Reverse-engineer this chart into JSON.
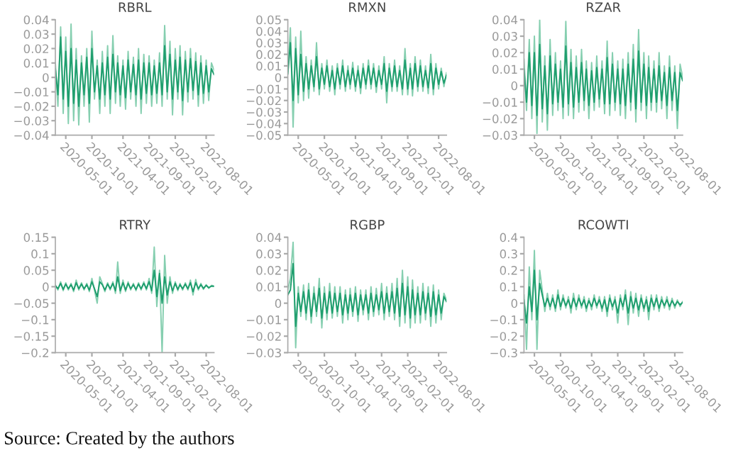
{
  "chart_data": [
    {
      "type": "line",
      "title": "RBRL",
      "x": [
        "2020-03-01",
        "2020-03-16",
        "2020-04-01",
        "2020-04-16",
        "2020-05-01",
        "2020-05-16",
        "2020-06-01",
        "2020-06-16",
        "2020-07-01",
        "2020-07-16",
        "2020-08-01",
        "2020-08-16",
        "2020-09-01",
        "2020-09-16",
        "2020-10-01",
        "2020-10-16",
        "2020-11-01",
        "2020-11-16",
        "2020-12-01",
        "2020-12-16",
        "2021-01-01",
        "2021-01-16",
        "2021-02-01",
        "2021-02-16",
        "2021-03-01",
        "2021-03-16",
        "2021-04-01",
        "2021-04-16",
        "2021-05-01",
        "2021-05-16",
        "2021-06-01",
        "2021-06-16",
        "2021-07-01",
        "2021-07-16",
        "2021-08-01",
        "2021-08-16",
        "2021-09-01",
        "2021-09-16",
        "2021-10-01",
        "2021-10-16",
        "2021-11-01",
        "2021-11-16",
        "2021-12-01",
        "2021-12-16",
        "2022-01-01",
        "2022-01-16",
        "2022-02-01",
        "2022-02-16",
        "2022-03-01",
        "2022-03-16",
        "2022-04-01",
        "2022-04-16",
        "2022-05-01",
        "2022-05-16",
        "2022-06-01",
        "2022-06-16",
        "2022-07-01",
        "2022-07-16",
        "2022-08-01",
        "2022-08-16",
        "2022-09-01",
        "2022-09-16"
      ],
      "xlim": [
        "2020-03-01",
        "2022-09-16"
      ],
      "xticks": [
        "2020-05-01",
        "2020-10-01",
        "2021-04-01",
        "2021-09-01",
        "2022-02-01",
        "2022-08-01"
      ],
      "ylim": [
        -0.04,
        0.04
      ],
      "yticks": [
        -0.04,
        -0.03,
        -0.02,
        -0.01,
        0,
        0.01,
        0.02,
        0.03,
        0.04
      ],
      "grid": false,
      "legend": false,
      "series": [
        {
          "color": "#86cfb0",
          "values": [
            0.01,
            -0.02,
            0.035,
            -0.025,
            0.028,
            -0.032,
            0.037,
            -0.03,
            0.02,
            -0.033,
            0.015,
            -0.02,
            0.02,
            -0.031,
            0.032,
            -0.015,
            0.012,
            -0.025,
            0.018,
            -0.02,
            0.022,
            -0.025,
            0.029,
            -0.018,
            0.015,
            -0.02,
            0.012,
            -0.022,
            0.018,
            -0.015,
            0.014,
            -0.02,
            0.02,
            -0.025,
            0.016,
            -0.018,
            0.015,
            -0.02,
            0.012,
            -0.018,
            0.017,
            -0.02,
            0.036,
            -0.015,
            0.025,
            -0.026,
            0.02,
            -0.015,
            0.022,
            -0.026,
            0.018,
            -0.017,
            0.02,
            -0.015,
            0.017,
            -0.02,
            0.015,
            -0.018,
            0.012,
            -0.016,
            0.01,
            0.005
          ]
        },
        {
          "color": "#1f9e6e",
          "values": [
            0.006,
            -0.012,
            0.028,
            -0.015,
            0.018,
            -0.02,
            0.02,
            -0.018,
            0.012,
            -0.02,
            0.01,
            -0.012,
            0.014,
            -0.018,
            0.02,
            -0.01,
            0.008,
            -0.015,
            0.01,
            -0.012,
            0.014,
            -0.015,
            0.016,
            -0.01,
            0.01,
            -0.012,
            0.008,
            -0.014,
            0.012,
            -0.01,
            0.009,
            -0.012,
            0.012,
            -0.015,
            0.01,
            -0.011,
            0.01,
            -0.012,
            0.008,
            -0.011,
            0.01,
            -0.012,
            0.022,
            -0.01,
            0.016,
            -0.015,
            0.012,
            -0.01,
            0.014,
            -0.016,
            0.012,
            -0.01,
            0.013,
            -0.009,
            0.011,
            -0.012,
            0.01,
            -0.011,
            0.008,
            -0.01,
            0.006,
            0.002
          ]
        }
      ],
      "annotations": [
        "Source: Created by the authors"
      ]
    },
    {
      "type": "line",
      "title": "RMXN",
      "x": [
        "2020-03-01",
        "2020-03-16",
        "2020-04-01",
        "2020-04-16",
        "2020-05-01",
        "2020-05-16",
        "2020-06-01",
        "2020-06-16",
        "2020-07-01",
        "2020-07-16",
        "2020-08-01",
        "2020-08-16",
        "2020-09-01",
        "2020-09-16",
        "2020-10-01",
        "2020-10-16",
        "2020-11-01",
        "2020-11-16",
        "2020-12-01",
        "2020-12-16",
        "2021-01-01",
        "2021-01-16",
        "2021-02-01",
        "2021-02-16",
        "2021-03-01",
        "2021-03-16",
        "2021-04-01",
        "2021-04-16",
        "2021-05-01",
        "2021-05-16",
        "2021-06-01",
        "2021-06-16",
        "2021-07-01",
        "2021-07-16",
        "2021-08-01",
        "2021-08-16",
        "2021-09-01",
        "2021-09-16",
        "2021-10-01",
        "2021-10-16",
        "2021-11-01",
        "2021-11-16",
        "2021-12-01",
        "2021-12-16",
        "2022-01-01",
        "2022-01-16",
        "2022-02-01",
        "2022-02-16",
        "2022-03-01",
        "2022-03-16",
        "2022-04-01",
        "2022-04-16",
        "2022-05-01",
        "2022-05-16",
        "2022-06-01",
        "2022-06-16",
        "2022-07-01",
        "2022-07-16",
        "2022-08-01",
        "2022-08-16",
        "2022-09-01",
        "2022-09-16"
      ],
      "xlim": [
        "2020-03-01",
        "2022-09-16"
      ],
      "xticks": [
        "2020-05-01",
        "2020-10-01",
        "2021-04-01",
        "2021-09-01",
        "2022-02-01",
        "2022-08-01"
      ],
      "ylim": [
        -0.05,
        0.05
      ],
      "yticks": [
        -0.05,
        -0.04,
        -0.03,
        -0.02,
        -0.01,
        0,
        0.01,
        0.02,
        0.03,
        0.04,
        0.05
      ],
      "grid": false,
      "legend": false,
      "series": [
        {
          "color": "#86cfb0",
          "values": [
            0.005,
            0.043,
            -0.043,
            0.035,
            -0.022,
            0.04,
            -0.02,
            0.018,
            -0.018,
            0.015,
            -0.012,
            0.03,
            -0.015,
            0.012,
            -0.01,
            0.015,
            -0.012,
            0.01,
            -0.015,
            0.012,
            -0.01,
            0.015,
            -0.012,
            0.01,
            -0.01,
            0.013,
            -0.012,
            0.01,
            -0.014,
            0.012,
            -0.01,
            0.015,
            -0.01,
            0.012,
            -0.013,
            0.01,
            -0.01,
            0.018,
            -0.022,
            0.012,
            -0.012,
            0.015,
            -0.012,
            0.01,
            -0.015,
            0.025,
            -0.015,
            0.012,
            -0.016,
            0.018,
            -0.012,
            0.015,
            -0.012,
            0.01,
            -0.014,
            0.02,
            -0.015,
            0.012,
            -0.01,
            0.008,
            -0.008,
            0.004
          ]
        },
        {
          "color": "#1f9e6e",
          "values": [
            0.003,
            0.03,
            -0.02,
            0.025,
            -0.015,
            0.02,
            -0.012,
            0.012,
            -0.01,
            0.01,
            -0.008,
            0.018,
            -0.01,
            0.008,
            -0.006,
            0.01,
            -0.008,
            0.006,
            -0.01,
            0.008,
            -0.006,
            0.01,
            -0.008,
            0.006,
            -0.006,
            0.008,
            -0.008,
            0.006,
            -0.009,
            0.008,
            -0.006,
            0.01,
            -0.006,
            0.008,
            -0.008,
            0.006,
            -0.006,
            0.012,
            -0.012,
            0.008,
            -0.008,
            0.01,
            -0.008,
            0.006,
            -0.01,
            0.015,
            -0.01,
            0.008,
            -0.01,
            0.012,
            -0.008,
            0.01,
            -0.008,
            0.006,
            -0.009,
            0.012,
            -0.01,
            0.008,
            -0.006,
            0.005,
            -0.005,
            0.002
          ]
        }
      ]
    },
    {
      "type": "line",
      "title": "RZAR",
      "x": [
        "2020-03-01",
        "2020-03-16",
        "2020-04-01",
        "2020-04-16",
        "2020-05-01",
        "2020-05-16",
        "2020-06-01",
        "2020-06-16",
        "2020-07-01",
        "2020-07-16",
        "2020-08-01",
        "2020-08-16",
        "2020-09-01",
        "2020-09-16",
        "2020-10-01",
        "2020-10-16",
        "2020-11-01",
        "2020-11-16",
        "2020-12-01",
        "2020-12-16",
        "2021-01-01",
        "2021-01-16",
        "2021-02-01",
        "2021-02-16",
        "2021-03-01",
        "2021-03-16",
        "2021-04-01",
        "2021-04-16",
        "2021-05-01",
        "2021-05-16",
        "2021-06-01",
        "2021-06-16",
        "2021-07-01",
        "2021-07-16",
        "2021-08-01",
        "2021-08-16",
        "2021-09-01",
        "2021-09-16",
        "2021-10-01",
        "2021-10-16",
        "2021-11-01",
        "2021-11-16",
        "2021-12-01",
        "2021-12-16",
        "2022-01-01",
        "2022-01-16",
        "2022-02-01",
        "2022-02-16",
        "2022-03-01",
        "2022-03-16",
        "2022-04-01",
        "2022-04-16",
        "2022-05-01",
        "2022-05-16",
        "2022-06-01",
        "2022-06-16",
        "2022-07-01",
        "2022-07-16",
        "2022-08-01",
        "2022-08-16",
        "2022-09-01",
        "2022-09-16"
      ],
      "xlim": [
        "2020-03-01",
        "2022-09-16"
      ],
      "xticks": [
        "2020-05-01",
        "2020-10-01",
        "2021-04-01",
        "2021-09-01",
        "2022-02-01",
        "2022-08-01"
      ],
      "ylim": [
        -0.03,
        0.04
      ],
      "yticks": [
        -0.03,
        -0.02,
        -0.01,
        0,
        0.01,
        0.02,
        0.03,
        0.04
      ],
      "grid": false,
      "legend": false,
      "series": [
        {
          "color": "#86cfb0",
          "values": [
            0.016,
            -0.015,
            0.028,
            -0.02,
            0.03,
            -0.029,
            0.04,
            -0.022,
            0.018,
            -0.027,
            0.028,
            -0.018,
            0.02,
            -0.015,
            0.015,
            -0.02,
            0.039,
            -0.018,
            0.022,
            -0.02,
            0.018,
            -0.016,
            0.022,
            -0.015,
            0.015,
            -0.02,
            0.014,
            -0.015,
            0.018,
            -0.013,
            0.015,
            -0.017,
            0.027,
            -0.018,
            0.02,
            -0.015,
            0.015,
            -0.018,
            0.016,
            -0.02,
            0.02,
            -0.015,
            0.025,
            -0.022,
            0.034,
            -0.015,
            0.02,
            -0.02,
            0.018,
            -0.015,
            0.015,
            -0.016,
            0.02,
            -0.014,
            0.012,
            -0.02,
            0.018,
            -0.015,
            0.012,
            -0.026,
            0.013,
            0.005
          ]
        },
        {
          "color": "#1f9e6e",
          "values": [
            0.01,
            -0.01,
            0.02,
            -0.012,
            0.02,
            -0.018,
            0.025,
            -0.014,
            0.012,
            -0.017,
            0.018,
            -0.011,
            0.013,
            -0.01,
            0.01,
            -0.013,
            0.024,
            -0.011,
            0.014,
            -0.013,
            0.011,
            -0.01,
            0.014,
            -0.009,
            0.01,
            -0.012,
            0.009,
            -0.01,
            0.011,
            -0.008,
            0.01,
            -0.011,
            0.017,
            -0.011,
            0.013,
            -0.01,
            0.01,
            -0.011,
            0.01,
            -0.012,
            0.013,
            -0.01,
            0.016,
            -0.014,
            0.021,
            -0.01,
            0.013,
            -0.012,
            0.011,
            -0.01,
            0.01,
            -0.01,
            0.012,
            -0.009,
            0.008,
            -0.012,
            0.011,
            -0.009,
            0.008,
            -0.015,
            0.008,
            0.003
          ]
        }
      ]
    },
    {
      "type": "line",
      "title": "RTRY",
      "x": [
        "2020-03-01",
        "2020-03-16",
        "2020-04-01",
        "2020-04-16",
        "2020-05-01",
        "2020-05-16",
        "2020-06-01",
        "2020-06-16",
        "2020-07-01",
        "2020-07-16",
        "2020-08-01",
        "2020-08-16",
        "2020-09-01",
        "2020-09-16",
        "2020-10-01",
        "2020-10-16",
        "2020-11-01",
        "2020-11-16",
        "2020-12-01",
        "2020-12-16",
        "2021-01-01",
        "2021-01-16",
        "2021-02-01",
        "2021-02-16",
        "2021-03-01",
        "2021-03-16",
        "2021-04-01",
        "2021-04-16",
        "2021-05-01",
        "2021-05-16",
        "2021-06-01",
        "2021-06-16",
        "2021-07-01",
        "2021-07-16",
        "2021-08-01",
        "2021-08-16",
        "2021-09-01",
        "2021-09-16",
        "2021-10-01",
        "2021-10-16",
        "2021-11-01",
        "2021-11-16",
        "2021-12-01",
        "2021-12-16",
        "2022-01-01",
        "2022-01-16",
        "2022-02-01",
        "2022-02-16",
        "2022-03-01",
        "2022-03-16",
        "2022-04-01",
        "2022-04-16",
        "2022-05-01",
        "2022-05-16",
        "2022-06-01",
        "2022-06-16",
        "2022-07-01",
        "2022-07-16",
        "2022-08-01",
        "2022-08-16",
        "2022-09-01",
        "2022-09-16"
      ],
      "xlim": [
        "2020-03-01",
        "2022-09-16"
      ],
      "xticks": [
        "2020-05-01",
        "2020-10-01",
        "2021-04-01",
        "2021-09-01",
        "2022-02-01",
        "2022-08-01"
      ],
      "ylim": [
        -0.2,
        0.15
      ],
      "yticks": [
        -0.2,
        -0.15,
        -0.1,
        -0.05,
        0,
        0.05,
        0.1,
        0.15
      ],
      "grid": false,
      "legend": false,
      "series": [
        {
          "color": "#86cfb0",
          "values": [
            0.005,
            -0.01,
            0.015,
            -0.012,
            0.012,
            -0.01,
            0.01,
            -0.015,
            0.02,
            -0.01,
            0.012,
            -0.01,
            0.01,
            -0.015,
            0.025,
            -0.01,
            -0.05,
            0.03,
            0.01,
            -0.015,
            0.012,
            -0.01,
            0.015,
            -0.02,
            0.075,
            -0.02,
            0.02,
            -0.015,
            0.015,
            -0.01,
            0.01,
            -0.012,
            0.012,
            -0.01,
            0.015,
            -0.01,
            0.025,
            -0.02,
            0.12,
            -0.06,
            0.05,
            -0.2,
            0.095,
            -0.05,
            0.03,
            -0.02,
            0.015,
            -0.012,
            0.01,
            -0.01,
            0.012,
            -0.01,
            0.02,
            -0.025,
            0.022,
            -0.01,
            0.01,
            -0.008,
            0.006,
            -0.005,
            0.004,
            0.002
          ]
        },
        {
          "color": "#1f9e6e",
          "values": [
            0.003,
            -0.006,
            0.01,
            -0.008,
            0.008,
            -0.006,
            0.006,
            -0.01,
            0.012,
            -0.006,
            0.008,
            -0.006,
            0.006,
            -0.01,
            0.015,
            -0.006,
            -0.03,
            0.015,
            0.006,
            -0.01,
            0.008,
            -0.006,
            0.01,
            -0.012,
            0.03,
            -0.012,
            0.012,
            -0.01,
            0.01,
            -0.006,
            0.006,
            -0.008,
            0.008,
            -0.006,
            0.01,
            -0.006,
            0.015,
            -0.012,
            0.05,
            -0.03,
            0.04,
            -0.05,
            0.03,
            -0.025,
            0.015,
            -0.012,
            0.01,
            -0.008,
            0.006,
            -0.006,
            0.008,
            -0.006,
            0.012,
            -0.015,
            0.012,
            -0.006,
            0.006,
            -0.005,
            0.004,
            -0.003,
            0.002,
            0.001
          ]
        }
      ]
    },
    {
      "type": "line",
      "title": "RGBP",
      "x": [
        "2020-03-01",
        "2020-03-16",
        "2020-04-01",
        "2020-04-16",
        "2020-05-01",
        "2020-05-16",
        "2020-06-01",
        "2020-06-16",
        "2020-07-01",
        "2020-07-16",
        "2020-08-01",
        "2020-08-16",
        "2020-09-01",
        "2020-09-16",
        "2020-10-01",
        "2020-10-16",
        "2020-11-01",
        "2020-11-16",
        "2020-12-01",
        "2020-12-16",
        "2021-01-01",
        "2021-01-16",
        "2021-02-01",
        "2021-02-16",
        "2021-03-01",
        "2021-03-16",
        "2021-04-01",
        "2021-04-16",
        "2021-05-01",
        "2021-05-16",
        "2021-06-01",
        "2021-06-16",
        "2021-07-01",
        "2021-07-16",
        "2021-08-01",
        "2021-08-16",
        "2021-09-01",
        "2021-09-16",
        "2021-10-01",
        "2021-10-16",
        "2021-11-01",
        "2021-11-16",
        "2021-12-01",
        "2021-12-16",
        "2022-01-01",
        "2022-01-16",
        "2022-02-01",
        "2022-02-16",
        "2022-03-01",
        "2022-03-16",
        "2022-04-01",
        "2022-04-16",
        "2022-05-01",
        "2022-05-16",
        "2022-06-01",
        "2022-06-16",
        "2022-07-01",
        "2022-07-16",
        "2022-08-01",
        "2022-08-16",
        "2022-09-01",
        "2022-09-16"
      ],
      "xlim": [
        "2020-03-01",
        "2022-09-16"
      ],
      "xticks": [
        "2020-05-01",
        "2020-10-01",
        "2021-04-01",
        "2021-09-01",
        "2022-02-01",
        "2022-08-01"
      ],
      "ylim": [
        -0.03,
        0.04
      ],
      "yticks": [
        -0.03,
        -0.02,
        -0.01,
        0,
        0.01,
        0.02,
        0.03,
        0.04
      ],
      "grid": false,
      "legend": false,
      "series": [
        {
          "color": "#86cfb0",
          "values": [
            0.008,
            0.015,
            0.037,
            -0.027,
            0.01,
            -0.008,
            0.011,
            -0.01,
            0.012,
            -0.012,
            0.01,
            -0.008,
            0.015,
            -0.015,
            0.01,
            -0.01,
            0.012,
            -0.009,
            0.01,
            -0.008,
            0.01,
            -0.012,
            0.008,
            -0.01,
            0.009,
            -0.008,
            0.01,
            -0.011,
            0.008,
            -0.007,
            0.008,
            -0.01,
            0.01,
            -0.008,
            0.009,
            -0.007,
            0.012,
            -0.01,
            0.01,
            -0.008,
            0.012,
            -0.01,
            0.015,
            -0.014,
            0.02,
            -0.012,
            0.016,
            -0.015,
            0.014,
            -0.012,
            0.01,
            -0.012,
            0.012,
            -0.01,
            0.01,
            -0.014,
            0.011,
            -0.012,
            0.008,
            -0.01,
            0.006,
            0.002
          ]
        },
        {
          "color": "#1f9e6e",
          "values": [
            0.005,
            0.008,
            0.024,
            -0.014,
            0.006,
            -0.005,
            0.007,
            -0.006,
            0.008,
            -0.008,
            0.006,
            -0.005,
            0.009,
            -0.009,
            0.006,
            -0.006,
            0.007,
            -0.006,
            0.006,
            -0.005,
            0.006,
            -0.007,
            0.005,
            -0.006,
            0.005,
            -0.005,
            0.006,
            -0.007,
            0.005,
            -0.004,
            0.005,
            -0.006,
            0.006,
            -0.005,
            0.005,
            -0.004,
            0.007,
            -0.006,
            0.006,
            -0.005,
            0.007,
            -0.006,
            0.009,
            -0.008,
            0.012,
            -0.007,
            0.01,
            -0.009,
            0.008,
            -0.007,
            0.006,
            -0.007,
            0.007,
            -0.006,
            0.006,
            -0.008,
            0.007,
            -0.007,
            0.005,
            -0.006,
            0.004,
            0.001
          ]
        }
      ]
    },
    {
      "type": "line",
      "title": "RCOWTI",
      "x": [
        "2020-03-01",
        "2020-03-16",
        "2020-04-01",
        "2020-04-16",
        "2020-05-01",
        "2020-05-16",
        "2020-06-01",
        "2020-06-16",
        "2020-07-01",
        "2020-07-16",
        "2020-08-01",
        "2020-08-16",
        "2020-09-01",
        "2020-09-16",
        "2020-10-01",
        "2020-10-16",
        "2020-11-01",
        "2020-11-16",
        "2020-12-01",
        "2020-12-16",
        "2021-01-01",
        "2021-01-16",
        "2021-02-01",
        "2021-02-16",
        "2021-03-01",
        "2021-03-16",
        "2021-04-01",
        "2021-04-16",
        "2021-05-01",
        "2021-05-16",
        "2021-06-01",
        "2021-06-16",
        "2021-07-01",
        "2021-07-16",
        "2021-08-01",
        "2021-08-16",
        "2021-09-01",
        "2021-09-16",
        "2021-10-01",
        "2021-10-16",
        "2021-11-01",
        "2021-11-16",
        "2021-12-01",
        "2021-12-16",
        "2022-01-01",
        "2022-01-16",
        "2022-02-01",
        "2022-02-16",
        "2022-03-01",
        "2022-03-16",
        "2022-04-01",
        "2022-04-16",
        "2022-05-01",
        "2022-05-16",
        "2022-06-01",
        "2022-06-16",
        "2022-07-01",
        "2022-07-16",
        "2022-08-01",
        "2022-08-16",
        "2022-09-01",
        "2022-09-16"
      ],
      "xlim": [
        "2020-03-01",
        "2022-09-16"
      ],
      "xticks": [
        "2020-05-01",
        "2020-10-01",
        "2021-04-01",
        "2021-09-01",
        "2022-02-01",
        "2022-08-01"
      ],
      "ylim": [
        -0.3,
        0.4
      ],
      "yticks": [
        -0.3,
        -0.2,
        -0.1,
        0,
        0.1,
        0.2,
        0.3,
        0.4
      ],
      "grid": false,
      "legend": false,
      "series": [
        {
          "color": "#86cfb0",
          "values": [
            0.05,
            -0.28,
            0.22,
            -0.1,
            0.32,
            -0.28,
            0.2,
            0.08,
            -0.05,
            0.06,
            -0.04,
            0.05,
            -0.05,
            0.08,
            -0.04,
            0.05,
            -0.03,
            0.04,
            -0.06,
            0.06,
            -0.04,
            0.05,
            -0.03,
            0.04,
            -0.05,
            0.03,
            -0.04,
            0.05,
            -0.03,
            0.04,
            -0.05,
            0.04,
            -0.08,
            0.05,
            -0.04,
            0.04,
            -0.12,
            0.05,
            -0.04,
            0.08,
            -0.13,
            0.07,
            -0.06,
            0.06,
            -0.08,
            0.05,
            -0.05,
            0.04,
            -0.1,
            0.05,
            -0.04,
            0.05,
            -0.05,
            0.04,
            -0.03,
            0.04,
            -0.04,
            0.03,
            -0.03,
            0.02,
            -0.02,
            0.01
          ]
        },
        {
          "color": "#1f9e6e",
          "values": [
            0.02,
            -0.12,
            0.1,
            -0.05,
            0.2,
            -0.1,
            0.12,
            0.05,
            -0.02,
            0.03,
            -0.02,
            0.03,
            -0.03,
            0.05,
            -0.02,
            0.03,
            -0.015,
            0.02,
            -0.03,
            0.03,
            -0.02,
            0.03,
            -0.015,
            0.02,
            -0.03,
            0.015,
            -0.02,
            0.03,
            -0.015,
            0.02,
            -0.03,
            0.02,
            -0.05,
            0.03,
            -0.02,
            0.02,
            -0.06,
            0.03,
            -0.02,
            0.05,
            -0.06,
            0.04,
            -0.03,
            0.03,
            -0.04,
            0.03,
            -0.03,
            0.02,
            -0.05,
            0.03,
            -0.02,
            0.03,
            -0.03,
            0.02,
            -0.015,
            0.02,
            -0.02,
            0.015,
            -0.015,
            0.01,
            -0.01,
            0.005
          ]
        }
      ]
    }
  ]
}
